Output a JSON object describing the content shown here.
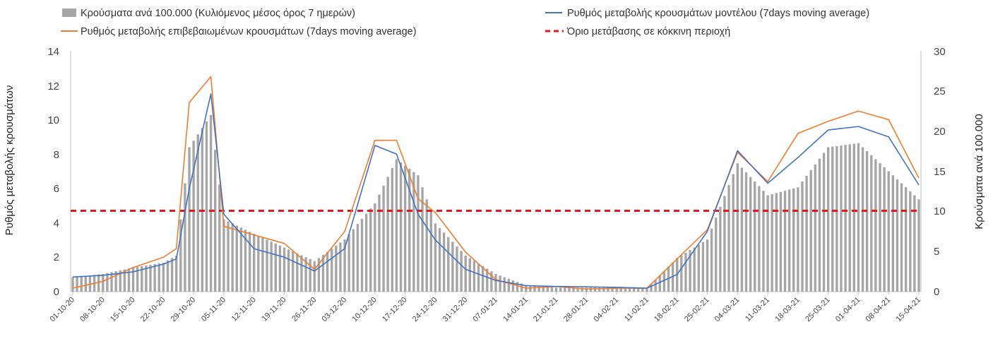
{
  "chart_data": {
    "type": "bar+line",
    "title": "",
    "left_axis": {
      "label": "Ρυθμός μεταβολής κρουσμάτων",
      "range": [
        0,
        14
      ],
      "ticks": [
        "0",
        "2",
        "4",
        "6",
        "8",
        "10",
        "12",
        "14"
      ]
    },
    "right_axis": {
      "label": "Κρούσματα ανά 100.000",
      "range": [
        0,
        30
      ],
      "ticks": [
        "0",
        "5",
        "10",
        "15",
        "20",
        "25",
        "30"
      ]
    },
    "x_tick_labels": [
      "01-10-20",
      "08-10-20",
      "15-10-20",
      "22-10-20",
      "29-10-20",
      "05-11-20",
      "12-11-20",
      "19-11-20",
      "26-11-20",
      "03-12-20",
      "10-12-20",
      "17-12-20",
      "24-12-20",
      "31-12-20",
      "07-01-21",
      "14-01-21",
      "21-01-21",
      "28-01-21",
      "04-02-21",
      "11-02-21",
      "18-02-21",
      "25-02-21",
      "04-03-21",
      "11-03-21",
      "18-03-21",
      "25-03-21",
      "01-04-21",
      "08-04-21",
      "15-04-21"
    ],
    "legend": {
      "bars": "Κρούσματα ανά 100.000 (Κυλιόμενος μέσος όρος 7 ημερών)",
      "model": "Ρυθμός μεταβολής κρουσμάτων μοντέλου (7days moving average)",
      "confirmed": "Ρυθμός μεταβολής επιβεβαιωμένων κρουσμάτων (7days moving average)",
      "threshold": "Όριο μετάβασης σε κόκκινη περιοχή"
    },
    "colors": {
      "bars": "#a6a6a6",
      "model": "#4472c4",
      "confirmed": "#ed7d31",
      "threshold": "#e0191e"
    },
    "threshold_value": 4.7,
    "anchor_dates": [
      "01-10-20",
      "08-10-20",
      "15-10-20",
      "22-10-20",
      "25-10-20",
      "28-10-20",
      "02-11-20",
      "05-11-20",
      "12-11-20",
      "19-11-20",
      "26-11-20",
      "03-12-20",
      "10-12-20",
      "15-12-20",
      "20-12-20",
      "24-12-20",
      "31-12-20",
      "07-01-21",
      "14-01-21",
      "21-01-21",
      "28-01-21",
      "04-02-21",
      "11-02-21",
      "18-02-21",
      "25-02-21",
      "04-03-21",
      "11-03-21",
      "18-03-21",
      "25-03-21",
      "01-04-21",
      "08-04-21",
      "15-04-21"
    ],
    "series": [
      {
        "name": "bars",
        "axis": "right",
        "values": [
          1.8,
          2.2,
          3.0,
          3.6,
          4.5,
          18,
          22,
          9,
          7.2,
          5.5,
          3.8,
          6.5,
          11,
          16.5,
          14.5,
          8.5,
          4.5,
          2.2,
          0.8,
          0.5,
          0.5,
          0.5,
          0.4,
          4.2,
          6.5,
          16,
          12,
          13,
          18,
          18.5,
          15,
          11.5
        ]
      },
      {
        "name": "model",
        "axis": "left",
        "values": [
          0.85,
          0.95,
          1.15,
          1.6,
          1.9,
          6.0,
          11.5,
          4.5,
          2.5,
          2.0,
          1.2,
          2.5,
          8.5,
          8.0,
          4.5,
          3.0,
          1.3,
          0.65,
          0.35,
          0.3,
          0.28,
          0.25,
          0.2,
          1.0,
          3.5,
          8.2,
          6.3,
          7.8,
          9.4,
          9.6,
          9.0,
          6.2
        ]
      },
      {
        "name": "confirmed",
        "axis": "left",
        "values": [
          0.2,
          0.6,
          1.4,
          2.0,
          2.5,
          11,
          12.5,
          3.8,
          3.3,
          2.8,
          1.3,
          3.5,
          8.8,
          8.8,
          5.4,
          4.6,
          2.3,
          0.7,
          0.2,
          0.3,
          0.15,
          0.2,
          0.2,
          1.9,
          3.6,
          8.1,
          6.4,
          9.2,
          9.9,
          10.5,
          10.0,
          6.6
        ]
      }
    ]
  }
}
